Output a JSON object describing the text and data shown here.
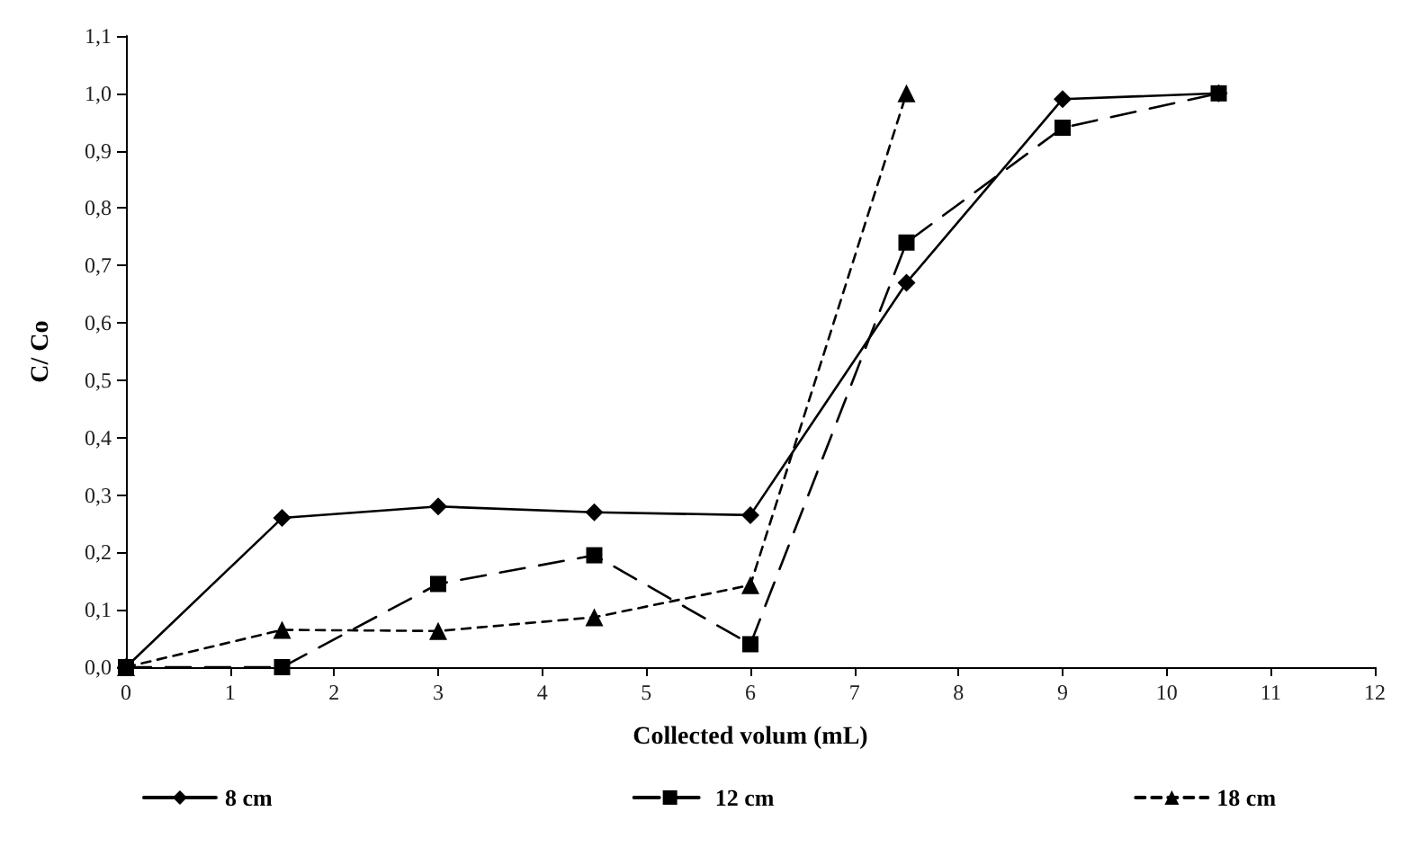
{
  "chart_data": {
    "type": "line",
    "xlabel": "Collected volum (mL)",
    "ylabel": "C/ Co",
    "xlim": [
      0,
      12
    ],
    "xticks": [
      0,
      1,
      2,
      3,
      4,
      5,
      6,
      7,
      8,
      9,
      10,
      11,
      12
    ],
    "ylim": [
      0,
      1.1
    ],
    "yticks": [
      {
        "value": 0,
        "label": "0,0"
      },
      {
        "value": 0.1,
        "label": "0,1"
      },
      {
        "value": 0.2,
        "label": "0,2"
      },
      {
        "value": 0.3,
        "label": "0,3"
      },
      {
        "value": 0.4,
        "label": "0,4"
      },
      {
        "value": 0.5,
        "label": "0,5"
      },
      {
        "value": 0.6,
        "label": "0,6"
      },
      {
        "value": 0.7,
        "label": "0,7"
      },
      {
        "value": 0.8,
        "label": "0,8"
      },
      {
        "value": 0.9,
        "label": "0,9"
      },
      {
        "value": 1.0,
        "label": "1,0"
      },
      {
        "value": 1.1,
        "label": "1,1"
      }
    ],
    "grid": false,
    "legend": "bottom",
    "series": [
      {
        "name": "8 cm",
        "color": "#000000",
        "marker": "diamond",
        "line_style": "solid",
        "x": [
          0,
          1.5,
          3,
          4.5,
          6,
          7.5,
          9,
          10.5
        ],
        "values": [
          0,
          0.26,
          0.28,
          0.27,
          0.265,
          0.67,
          0.99,
          1.0
        ]
      },
      {
        "name": "12 cm",
        "color": "#000000",
        "marker": "square",
        "line_style": "dashed",
        "x": [
          0,
          1.5,
          3,
          4.5,
          6,
          7.5,
          9,
          10.5
        ],
        "values": [
          0,
          0,
          0.145,
          0.195,
          0.04,
          0.74,
          0.94,
          1.0
        ]
      },
      {
        "name": "18 cm",
        "color": "#000000",
        "marker": "triangle",
        "line_style": "dotted",
        "x": [
          0,
          1.5,
          3,
          4.5,
          6,
          7.5
        ],
        "values": [
          0,
          0.065,
          0.063,
          0.087,
          0.143,
          1.0
        ]
      }
    ]
  }
}
